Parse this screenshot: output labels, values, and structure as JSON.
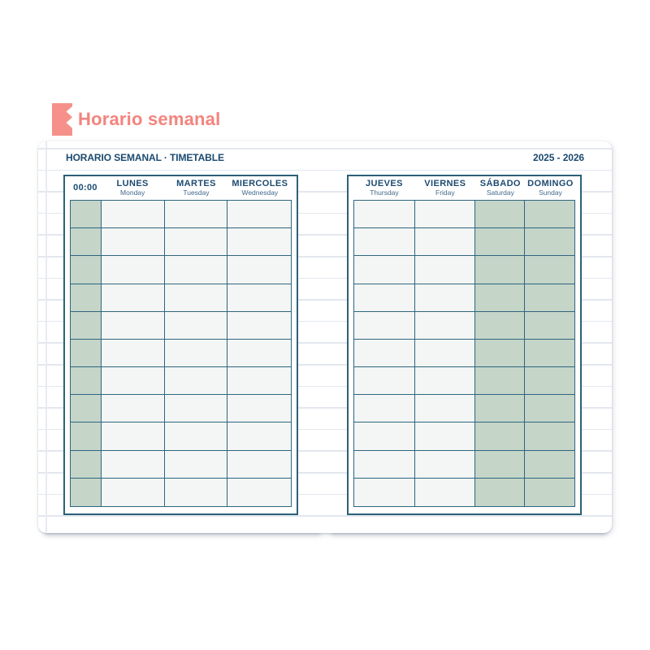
{
  "page_title": {
    "label": "Horario semanal"
  },
  "sheet": {
    "header": {
      "left": "HORARIO SEMANAL · TIMETABLE",
      "right": "2025 - 2026"
    },
    "time_column_label": "00:00",
    "rows": 11,
    "tables": [
      {
        "id": "left",
        "time_column": true,
        "days": [
          {
            "name": "LUNES",
            "sub": "Monday",
            "highlight": false
          },
          {
            "name": "MARTES",
            "sub": "Tuesday",
            "highlight": false
          },
          {
            "name": "MIERCOLES",
            "sub": "Wednesday",
            "highlight": false
          }
        ]
      },
      {
        "id": "right",
        "time_column": false,
        "days": [
          {
            "name": "JUEVES",
            "sub": "Thursday",
            "highlight": false
          },
          {
            "name": "VIERNES",
            "sub": "Friday",
            "highlight": false
          },
          {
            "name": "SÁBADO",
            "sub": "Saturday",
            "highlight": true
          },
          {
            "name": "DOMINGO",
            "sub": "Sunday",
            "highlight": true
          }
        ]
      }
    ],
    "colors": {
      "accent": "#f4837d",
      "navy": "#1d4b71",
      "grid": "#2f6681",
      "highlight_green": "#c5d5c8",
      "cell_fill": "#f3f6f4",
      "rule_line": "#e3e7ee"
    }
  }
}
